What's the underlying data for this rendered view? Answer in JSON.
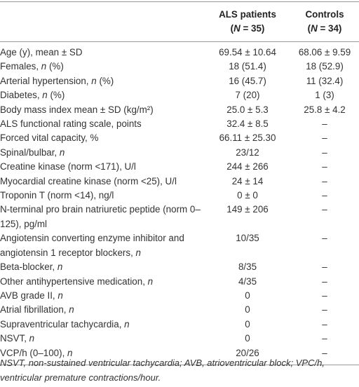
{
  "table": {
    "header": [
      {
        "line1": "ALS patients",
        "line2": "(N = 35)"
      },
      {
        "line1": "Controls",
        "line2": "(N = 34)"
      }
    ],
    "rows": [
      [
        "Age (y), mean ± SD",
        "69.54 ± 10.64",
        "68.06 ± 9.59"
      ],
      [
        "Females, n (%)",
        "18 (51.4)",
        "18 (52.9)"
      ],
      [
        "Arterial hypertension, n (%)",
        "16 (45.7)",
        "11 (32.4)"
      ],
      [
        "Diabetes, n (%)",
        "7 (20)",
        "1 (3)"
      ],
      [
        "Body mass index mean ± SD (kg/m²)",
        "25.0 ± 5.3",
        "25.8 ± 4.2"
      ],
      [
        "ALS functional rating scale, points",
        "32.4 ± 8.5",
        "–"
      ],
      [
        "Forced vital capacity, %",
        "66.11 ± 25.30",
        "–"
      ],
      [
        "Spinal/bulbar, n",
        "23/12",
        "–"
      ],
      [
        "Creatine kinase (norm <171), U/l",
        "244 ± 266",
        "–"
      ],
      [
        "Myocardial creatine kinase (norm <25), U/l",
        "24 ± 14",
        "–"
      ],
      [
        "Troponin T (norm <14), ng/l",
        "0 ± 0",
        "–"
      ],
      [
        "N-terminal pro brain natriuretic peptide (norm 0–125), pg/ml",
        "149 ± 206",
        "–"
      ],
      [
        "Angiotensin converting enzyme inhibitor and angiotensin 1 receptor blockers, n",
        "10/35",
        "–"
      ],
      [
        "Beta-blocker, n",
        "8/35",
        "–"
      ],
      [
        "Other antihypertensive medication, n",
        "4/35",
        "–"
      ],
      [
        "AVB grade II, n",
        "0",
        "–"
      ],
      [
        "Atrial fibrillation, n",
        "0",
        "–"
      ],
      [
        "Supraventricular tachycardia, n",
        "0",
        "–"
      ],
      [
        "NSVT, n",
        "0",
        "–"
      ],
      [
        "VCP/h (0–100), n",
        "20/26",
        "–"
      ]
    ],
    "footnote": "NSVT, non-sustained ventricular tachycardia; AVB, atrioventricular block; VPC/h, ventricular premature contractions/hour."
  }
}
